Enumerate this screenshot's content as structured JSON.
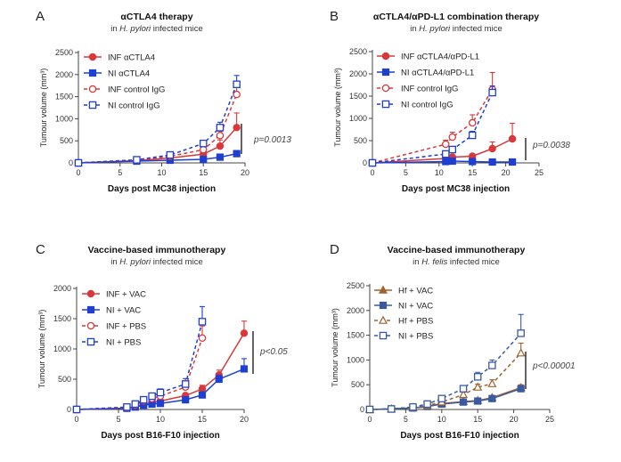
{
  "chart_data": [
    {
      "type": "line",
      "panel": "A",
      "title": "αCTLA4 therapy",
      "subtitle_prefix": "in ",
      "subtitle_italic": "H. pylori",
      "subtitle_suffix": " infected mice",
      "xlabel": "Days post MC38 injection",
      "ylabel": "Tumour volume (mm³)",
      "xlim": [
        0,
        20
      ],
      "ylim": [
        0,
        2500
      ],
      "xticks": [
        0,
        5,
        10,
        15,
        20
      ],
      "yticks": [
        0,
        500,
        1000,
        1500,
        2000,
        2500
      ],
      "annotation": "p=0.0013",
      "series": [
        {
          "name": "INF αCTLA4",
          "color": "#d9383a",
          "dash": false,
          "marker": "circle-filled",
          "x": [
            0,
            7,
            11,
            15,
            17,
            19
          ],
          "y": [
            0,
            50,
            110,
            200,
            380,
            800
          ],
          "err": [
            0,
            15,
            25,
            45,
            140,
            330
          ]
        },
        {
          "name": "NI αCTLA4",
          "color": "#1f3fd1",
          "dash": false,
          "marker": "square-filled",
          "x": [
            0,
            7,
            11,
            15,
            17,
            19
          ],
          "y": [
            0,
            40,
            60,
            80,
            130,
            210
          ],
          "err": [
            0,
            10,
            10,
            15,
            25,
            30
          ]
        },
        {
          "name": "INF control IgG",
          "color": "#d9383a",
          "dash": true,
          "marker": "circle-open",
          "x": [
            0,
            7,
            11,
            15,
            17,
            19
          ],
          "y": [
            0,
            60,
            150,
            300,
            620,
            1550
          ],
          "err": [
            0,
            15,
            30,
            50,
            100,
            200
          ]
        },
        {
          "name": "NI control IgG",
          "color": "#1f3fd1",
          "dash": true,
          "marker": "square-open",
          "x": [
            0,
            7,
            11,
            15,
            17,
            19
          ],
          "y": [
            0,
            70,
            180,
            440,
            800,
            1780
          ],
          "err": [
            0,
            15,
            35,
            70,
            120,
            200
          ]
        }
      ]
    },
    {
      "type": "line",
      "panel": "B",
      "title": "αCTLA4/αPD-L1 combination therapy",
      "subtitle_prefix": "in ",
      "subtitle_italic": "H. pylori",
      "subtitle_suffix": " infected mice",
      "xlabel": "Days post MC38 injection",
      "ylabel": "Tumour volume (mm³)",
      "xlim": [
        0,
        25
      ],
      "ylim": [
        0,
        2500
      ],
      "xticks": [
        0,
        5,
        10,
        15,
        20,
        25
      ],
      "yticks": [
        0,
        500,
        1000,
        1500,
        2000,
        2500
      ],
      "annotation": "p=0.0038",
      "series": [
        {
          "name": "INF  αCTLA4/αPD-L1",
          "color": "#d9383a",
          "dash": false,
          "marker": "circle-filled",
          "x": [
            0,
            11,
            12,
            15,
            18,
            21
          ],
          "y": [
            0,
            100,
            130,
            150,
            320,
            540
          ],
          "err": [
            0,
            30,
            35,
            50,
            150,
            350
          ]
        },
        {
          "name": "NI αCTLA4/αPD-L1",
          "color": "#1f3fd1",
          "dash": false,
          "marker": "square-filled",
          "x": [
            0,
            11,
            12,
            15,
            18,
            21
          ],
          "y": [
            0,
            30,
            40,
            30,
            20,
            20
          ],
          "err": [
            0,
            8,
            10,
            8,
            5,
            5
          ]
        },
        {
          "name": "INF control IgG",
          "color": "#d9383a",
          "dash": true,
          "marker": "circle-open",
          "x": [
            0,
            11,
            12,
            15,
            18
          ],
          "y": [
            0,
            420,
            580,
            900,
            1650
          ],
          "err": [
            0,
            90,
            110,
            180,
            380
          ]
        },
        {
          "name": "NI control IgG",
          "color": "#1f3fd1",
          "dash": true,
          "marker": "square-open",
          "x": [
            0,
            11,
            12,
            15,
            18
          ],
          "y": [
            0,
            200,
            300,
            620,
            1580
          ],
          "err": [
            0,
            40,
            50,
            90,
            150
          ]
        }
      ]
    },
    {
      "type": "line",
      "panel": "C",
      "title": "Vaccine-based immunotherapy",
      "subtitle_prefix": "in ",
      "subtitle_italic": "H. pylori",
      "subtitle_suffix": " infected mice",
      "xlabel": "Days post B16-F10 injection",
      "ylabel": "Tumour volume (mm³)",
      "xlim": [
        0,
        20
      ],
      "ylim": [
        0,
        2000
      ],
      "xticks": [
        0,
        5,
        10,
        15,
        20
      ],
      "yticks": [
        0,
        500,
        1000,
        1500,
        2000
      ],
      "annotation": "p<0.05",
      "series": [
        {
          "name": "INF + VAC",
          "color": "#d9383a",
          "dash": false,
          "marker": "circle-filled",
          "x": [
            0,
            6,
            7,
            8,
            9,
            10,
            13,
            15,
            17,
            20
          ],
          "y": [
            0,
            20,
            50,
            90,
            110,
            140,
            230,
            340,
            570,
            1260
          ],
          "err": [
            0,
            5,
            10,
            15,
            20,
            25,
            40,
            60,
            80,
            200
          ]
        },
        {
          "name": "NI + VAC",
          "color": "#1f3fd1",
          "dash": false,
          "marker": "square-filled",
          "x": [
            0,
            6,
            7,
            8,
            9,
            10,
            13,
            15,
            17,
            20
          ],
          "y": [
            0,
            20,
            40,
            70,
            90,
            100,
            160,
            240,
            500,
            670
          ],
          "err": [
            0,
            5,
            10,
            12,
            15,
            20,
            30,
            50,
            70,
            170
          ]
        },
        {
          "name": "INF + PBS",
          "color": "#d9383a",
          "dash": true,
          "marker": "circle-open",
          "x": [
            0,
            6,
            7,
            8,
            9,
            10,
            13,
            15
          ],
          "y": [
            0,
            30,
            70,
            140,
            180,
            220,
            370,
            1180
          ],
          "err": [
            0,
            8,
            15,
            30,
            40,
            50,
            80,
            200
          ]
        },
        {
          "name": "NI + PBS",
          "color": "#1f3fd1",
          "dash": true,
          "marker": "square-open",
          "x": [
            0,
            6,
            7,
            8,
            9,
            10,
            13,
            15
          ],
          "y": [
            0,
            40,
            90,
            160,
            220,
            280,
            420,
            1450
          ],
          "err": [
            0,
            10,
            20,
            35,
            45,
            60,
            90,
            250
          ]
        }
      ]
    },
    {
      "type": "line",
      "panel": "D",
      "title": "Vaccine-based immunotherapy",
      "subtitle_prefix": "in ",
      "subtitle_italic": "H. felis",
      "subtitle_suffix": " infected mice",
      "xlabel": "Days post B16-F10 injection",
      "ylabel": "Tumour volume (mm³)",
      "xlim": [
        0,
        25
      ],
      "ylim": [
        0,
        2500
      ],
      "xticks": [
        0,
        5,
        10,
        15,
        20,
        25
      ],
      "yticks": [
        0,
        500,
        1000,
        1500,
        2000,
        2500
      ],
      "annotation": "p<0.00001",
      "series": [
        {
          "name": "Hf + VAC",
          "color": "#a0622e",
          "dash": false,
          "marker": "triangle-filled",
          "x": [
            0,
            3,
            6,
            8,
            10,
            13,
            15,
            17,
            21
          ],
          "y": [
            0,
            10,
            30,
            60,
            120,
            160,
            180,
            240,
            440
          ],
          "err": [
            0,
            3,
            8,
            15,
            20,
            25,
            30,
            40,
            60
          ]
        },
        {
          "name": "NI + VAC",
          "color": "#3a5ba0",
          "dash": false,
          "marker": "square-filled",
          "x": [
            0,
            3,
            6,
            8,
            10,
            13,
            15,
            17,
            21
          ],
          "y": [
            0,
            10,
            30,
            60,
            110,
            150,
            170,
            220,
            420
          ],
          "err": [
            0,
            3,
            8,
            15,
            20,
            25,
            30,
            40,
            60
          ]
        },
        {
          "name": "Hf + PBS",
          "color": "#a0622e",
          "dash": true,
          "marker": "triangle-open",
          "x": [
            0,
            3,
            6,
            8,
            10,
            13,
            15,
            17,
            21
          ],
          "y": [
            0,
            10,
            40,
            80,
            150,
            300,
            450,
            520,
            1140
          ],
          "err": [
            0,
            3,
            10,
            20,
            30,
            50,
            60,
            80,
            200
          ]
        },
        {
          "name": "NI + PBS",
          "color": "#3a5ba0",
          "dash": true,
          "marker": "square-open",
          "x": [
            0,
            3,
            6,
            8,
            10,
            13,
            15,
            17,
            21
          ],
          "y": [
            0,
            10,
            50,
            110,
            220,
            420,
            660,
            890,
            1540
          ],
          "err": [
            0,
            3,
            10,
            25,
            40,
            60,
            90,
            110,
            380
          ]
        }
      ]
    }
  ]
}
